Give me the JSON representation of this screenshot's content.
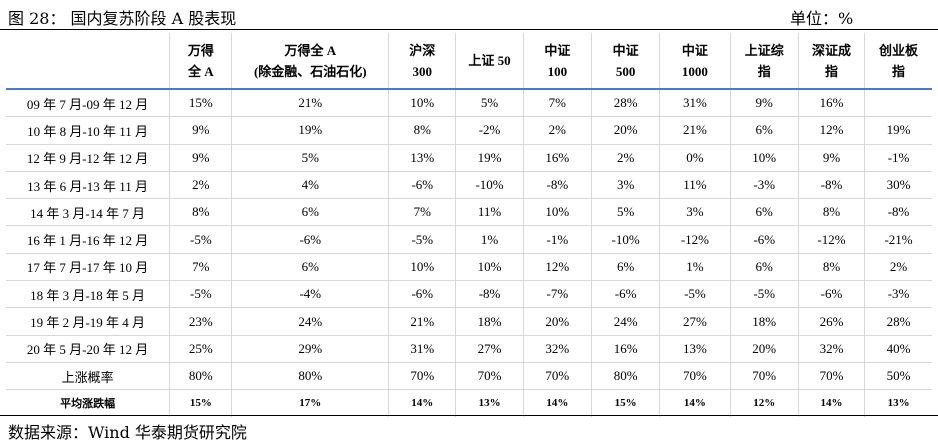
{
  "header": {
    "title": "图 28：   国内复苏阶段 A 股表现",
    "unit": "单位：%"
  },
  "table": {
    "columns": [
      {
        "line1": "",
        "line2": ""
      },
      {
        "line1": "万得",
        "line2": "全 A"
      },
      {
        "line1": "万得全 A",
        "line2": "(除金融、石油石化)"
      },
      {
        "line1": "沪深",
        "line2": "300"
      },
      {
        "line1": "上证 50",
        "line2": ""
      },
      {
        "line1": "中证",
        "line2": "100"
      },
      {
        "line1": "中证",
        "line2": "500"
      },
      {
        "line1": "中证",
        "line2": "1000"
      },
      {
        "line1": "上证综",
        "line2": "指"
      },
      {
        "line1": "深证成",
        "line2": "指"
      },
      {
        "line1": "创业板",
        "line2": "指"
      }
    ],
    "rows": [
      [
        "09 年 7 月-09 年 12 月",
        "15%",
        "21%",
        "10%",
        "5%",
        "7%",
        "28%",
        "31%",
        "9%",
        "16%",
        ""
      ],
      [
        "10 年 8 月-10 年 11 月",
        "9%",
        "19%",
        "8%",
        "-2%",
        "2%",
        "20%",
        "21%",
        "6%",
        "12%",
        "19%"
      ],
      [
        "12 年 9 月-12 年 12 月",
        "9%",
        "5%",
        "13%",
        "19%",
        "16%",
        "2%",
        "0%",
        "10%",
        "9%",
        "-1%"
      ],
      [
        "13 年 6 月-13 年 11 月",
        "2%",
        "4%",
        "-6%",
        "-10%",
        "-8%",
        "3%",
        "11%",
        "-3%",
        "-8%",
        "30%"
      ],
      [
        "14 年 3 月-14 年 7 月",
        "8%",
        "6%",
        "7%",
        "11%",
        "10%",
        "5%",
        "3%",
        "6%",
        "8%",
        "-8%"
      ],
      [
        "16 年 1 月-16 年 12 月",
        "-5%",
        "-6%",
        "-5%",
        "1%",
        "-1%",
        "-10%",
        "-12%",
        "-6%",
        "-12%",
        "-21%"
      ],
      [
        "17 年 7 月-17 年 10 月",
        "7%",
        "6%",
        "10%",
        "10%",
        "12%",
        "6%",
        "1%",
        "6%",
        "8%",
        "2%"
      ],
      [
        "18 年 3 月-18 年 5 月",
        "-5%",
        "-4%",
        "-6%",
        "-8%",
        "-7%",
        "-6%",
        "-5%",
        "-5%",
        "-6%",
        "-3%"
      ],
      [
        "19 年 2 月-19 年 4 月",
        "23%",
        "24%",
        "21%",
        "18%",
        "20%",
        "24%",
        "27%",
        "18%",
        "26%",
        "28%"
      ],
      [
        "20 年 5 月-20 年 12 月",
        "25%",
        "29%",
        "31%",
        "27%",
        "32%",
        "16%",
        "13%",
        "20%",
        "32%",
        "40%"
      ],
      [
        "上涨概率",
        "80%",
        "80%",
        "70%",
        "70%",
        "70%",
        "80%",
        "70%",
        "70%",
        "70%",
        "50%"
      ],
      [
        "平均涨跌幅",
        "15%",
        "17%",
        "14%",
        "13%",
        "14%",
        "15%",
        "14%",
        "12%",
        "14%",
        "13%"
      ]
    ]
  },
  "footer": {
    "source": "数据来源：Wind  华泰期货研究院"
  }
}
